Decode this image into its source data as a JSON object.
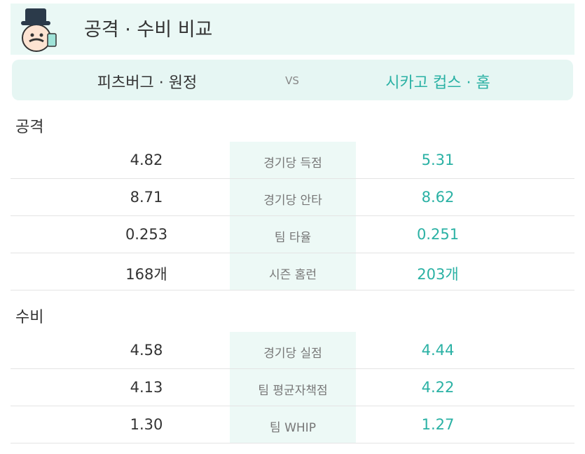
{
  "header": {
    "title": "공격 · 수비 비교"
  },
  "matchup": {
    "away": "피츠버그 · 원정",
    "vs": "VS",
    "home": "시카고 컵스 · 홈"
  },
  "sections": [
    {
      "title": "공격",
      "rows": [
        {
          "away": "4.82",
          "label": "경기당 득점",
          "home": "5.31"
        },
        {
          "away": "8.71",
          "label": "경기당 안타",
          "home": "8.62"
        },
        {
          "away": "0.253",
          "label": "팀 타율",
          "home": "0.251"
        },
        {
          "away": "168개",
          "label": "시즌 홈런",
          "home": "203개"
        }
      ]
    },
    {
      "title": "수비",
      "rows": [
        {
          "away": "4.58",
          "label": "경기당 실점",
          "home": "4.44"
        },
        {
          "away": "4.13",
          "label": "팀 평균자책점",
          "home": "4.22"
        },
        {
          "away": "1.30",
          "label": "팀 WHIP",
          "home": "1.27"
        }
      ]
    }
  ]
}
